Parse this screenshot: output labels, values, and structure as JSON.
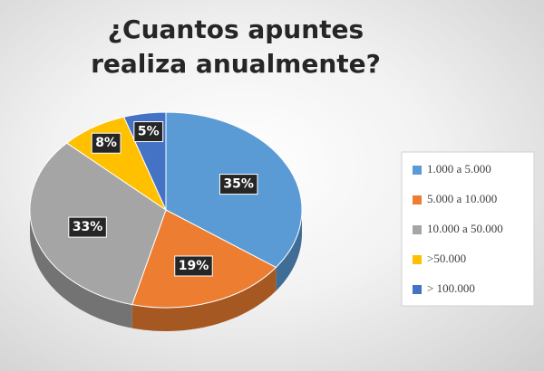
{
  "chart_data": {
    "type": "pie",
    "title": "¿Cuantos apuntes  realiza anualmente?",
    "categories": [
      "1.000 a 5.000",
      "5.000 a 10.000",
      "10.000 a 50.000",
      ">50.000",
      "> 100.000"
    ],
    "values": [
      35,
      19,
      33,
      8,
      5
    ],
    "value_labels": [
      "35%",
      "19%",
      "33%",
      "8%",
      "5%"
    ],
    "colors": [
      "#5b9bd5",
      "#ed7d31",
      "#a5a5a5",
      "#ffc000",
      "#4472c4"
    ],
    "legend": "right"
  }
}
